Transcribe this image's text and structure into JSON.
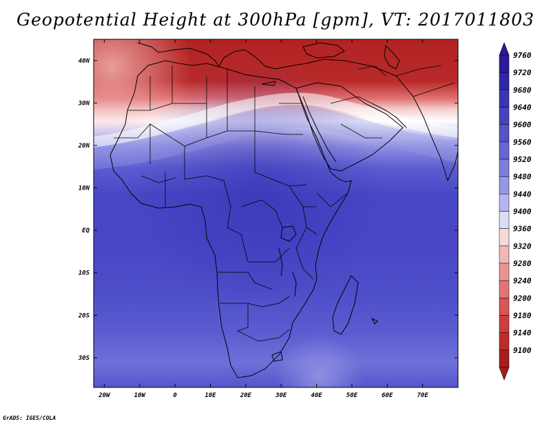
{
  "title": "Geopotential Height at 300hPa [gpm], VT: 2017011803",
  "credit": "GrADS: IGES/COLA",
  "map": {
    "lon_range": [
      -23,
      80
    ],
    "lat_range": [
      -37,
      45
    ],
    "lat_ticks": [
      {
        "value": 40,
        "label": "40N"
      },
      {
        "value": 30,
        "label": "30N"
      },
      {
        "value": 20,
        "label": "20N"
      },
      {
        "value": 10,
        "label": "10N"
      },
      {
        "value": 0,
        "label": "EQ"
      },
      {
        "value": -10,
        "label": "10S"
      },
      {
        "value": -20,
        "label": "20S"
      },
      {
        "value": -30,
        "label": "30S"
      }
    ],
    "lon_ticks": [
      {
        "value": -20,
        "label": "20W"
      },
      {
        "value": -10,
        "label": "10W"
      },
      {
        "value": 0,
        "label": "0"
      },
      {
        "value": 10,
        "label": "10E"
      },
      {
        "value": 20,
        "label": "20E"
      },
      {
        "value": 30,
        "label": "30E"
      },
      {
        "value": 40,
        "label": "40E"
      },
      {
        "value": 50,
        "label": "50E"
      },
      {
        "value": 60,
        "label": "60E"
      },
      {
        "value": 70,
        "label": "70E"
      }
    ]
  },
  "colorbar": {
    "levels": [
      {
        "label": "9760",
        "color": "#2b1a9a"
      },
      {
        "label": "9720",
        "color": "#3227a8"
      },
      {
        "label": "9680",
        "color": "#3b35b4"
      },
      {
        "label": "9640",
        "color": "#4742bf"
      },
      {
        "label": "9600",
        "color": "#5553c9"
      },
      {
        "label": "9560",
        "color": "#6766d3"
      },
      {
        "label": "9520",
        "color": "#7d7ddc"
      },
      {
        "label": "9480",
        "color": "#9797e5"
      },
      {
        "label": "9440",
        "color": "#b6b6ee"
      },
      {
        "label": "9400",
        "color": "#dcdcf7"
      },
      {
        "label": "9360",
        "color": "#f6dada"
      },
      {
        "label": "9320",
        "color": "#f0b7b7"
      },
      {
        "label": "9280",
        "color": "#e99595"
      },
      {
        "label": "9240",
        "color": "#e17575"
      },
      {
        "label": "9200",
        "color": "#d95656"
      },
      {
        "label": "9180",
        "color": "#cf3d3d"
      },
      {
        "label": "9140",
        "color": "#c02a2a"
      },
      {
        "label": "9100",
        "color": "#a81d1d"
      }
    ],
    "top_arrow_color": "#2b1a9a",
    "bottom_arrow_color": "#a81d1d"
  }
}
